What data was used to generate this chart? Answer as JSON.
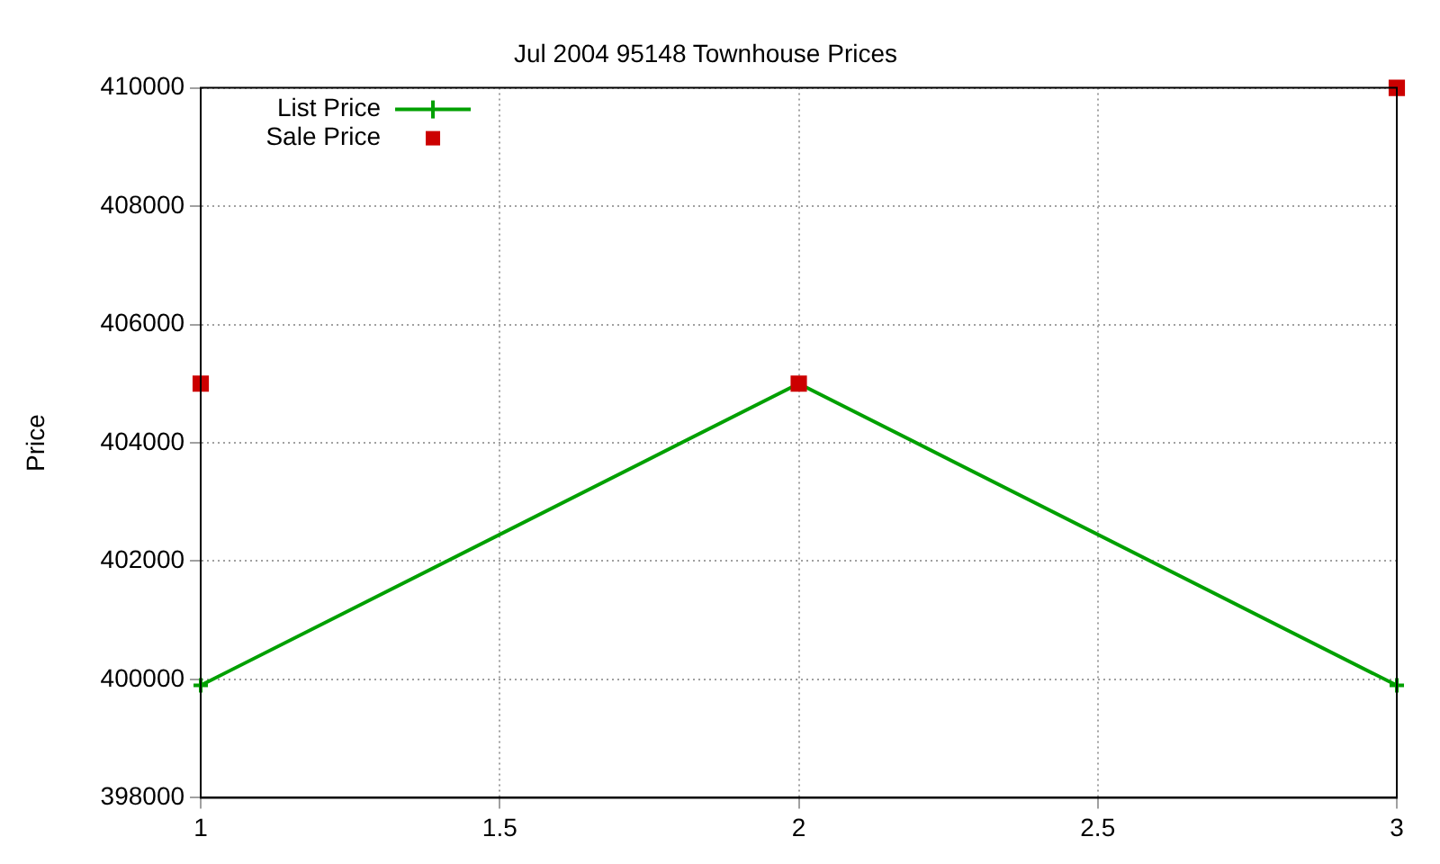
{
  "chart_data": {
    "type": "line",
    "title": "Jul 2004 95148 Townhouse Prices",
    "ylabel": "Price",
    "x": [
      1,
      2,
      3
    ],
    "series": [
      {
        "name": "List Price",
        "color": "#00a000",
        "values": [
          399900,
          405000,
          399900
        ],
        "marker": "cross",
        "line_style": "solid"
      },
      {
        "name": "Sale Price",
        "color": "#cc0000",
        "values": [
          405000,
          405000,
          410000
        ],
        "type": "scatter",
        "marker": "square"
      }
    ],
    "xlim": [
      1,
      3
    ],
    "xticks": [
      1,
      1.5,
      2,
      2.5,
      3
    ],
    "ylim": [
      398000,
      410000
    ],
    "yticks": [
      398000,
      400000,
      402000,
      404000,
      406000,
      408000,
      410000
    ],
    "grid": true,
    "legend": "top left"
  }
}
